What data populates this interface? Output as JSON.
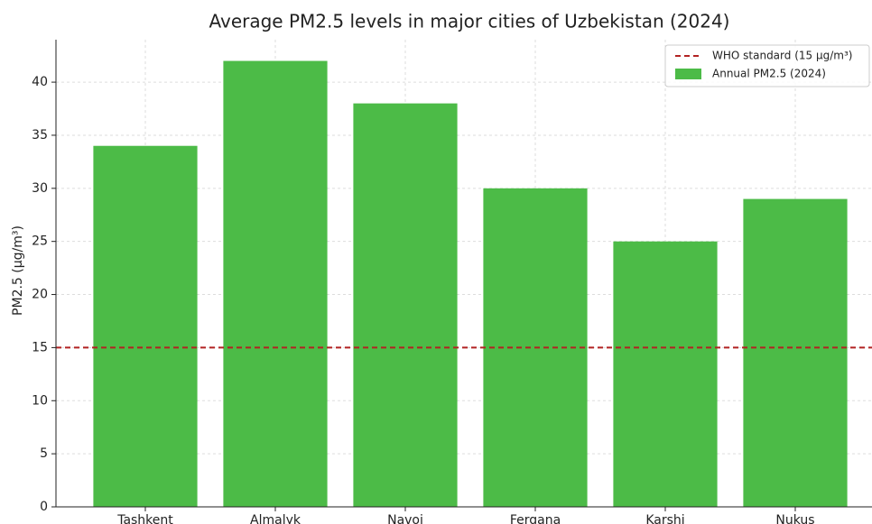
{
  "chart_data": {
    "type": "bar",
    "title": "Average PM2.5 levels in major cities of Uzbekistan (2024)",
    "ylabel": "PM2.5 (µg/m³)",
    "categories": [
      "Tashkent",
      "Almalyk",
      "Navoi",
      "Fergana",
      "Karshi",
      "Nukus"
    ],
    "series": [
      {
        "name": "Annual PM2.5 (2024)",
        "color": "#4cbb47",
        "values": [
          34,
          42,
          38,
          30,
          25,
          29
        ]
      }
    ],
    "reference_line": {
      "value": 15,
      "label": "WHO standard (15 µg/m³)",
      "color": "#b22222"
    },
    "ylim": [
      0,
      44
    ],
    "yticks": [
      0,
      5,
      10,
      15,
      20,
      25,
      30,
      35,
      40
    ],
    "grid": true,
    "legend": "upper right"
  }
}
